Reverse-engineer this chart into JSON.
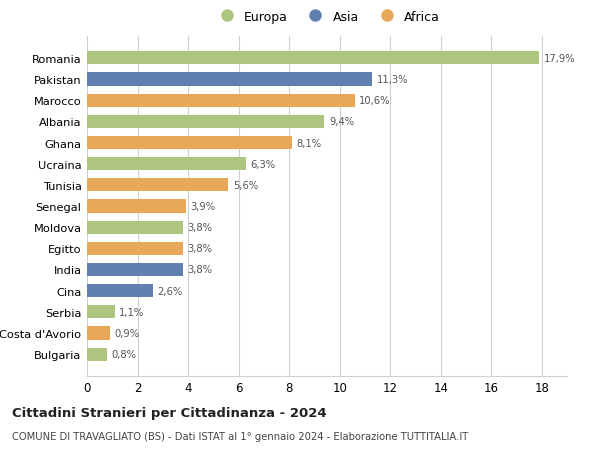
{
  "countries": [
    "Romania",
    "Pakistan",
    "Marocco",
    "Albania",
    "Ghana",
    "Ucraina",
    "Tunisia",
    "Senegal",
    "Moldova",
    "Egitto",
    "India",
    "Cina",
    "Serbia",
    "Costa d'Avorio",
    "Bulgaria"
  ],
  "values": [
    17.9,
    11.3,
    10.6,
    9.4,
    8.1,
    6.3,
    5.6,
    3.9,
    3.8,
    3.8,
    3.8,
    2.6,
    1.1,
    0.9,
    0.8
  ],
  "labels": [
    "17,9%",
    "11,3%",
    "10,6%",
    "9,4%",
    "8,1%",
    "6,3%",
    "5,6%",
    "3,9%",
    "3,8%",
    "3,8%",
    "3,8%",
    "2,6%",
    "1,1%",
    "0,9%",
    "0,8%"
  ],
  "continents": [
    "Europa",
    "Asia",
    "Africa",
    "Europa",
    "Africa",
    "Europa",
    "Africa",
    "Africa",
    "Europa",
    "Africa",
    "Asia",
    "Asia",
    "Europa",
    "Africa",
    "Europa"
  ],
  "colors": {
    "Europa": "#adc57e",
    "Asia": "#6080b0",
    "Africa": "#e8a85a"
  },
  "xlim": [
    0,
    19
  ],
  "xticks": [
    0,
    2,
    4,
    6,
    8,
    10,
    12,
    14,
    16,
    18
  ],
  "title": "Cittadini Stranieri per Cittadinanza - 2024",
  "subtitle": "COMUNE DI TRAVAGLIATO (BS) - Dati ISTAT al 1° gennaio 2024 - Elaborazione TUTTITALIA.IT",
  "background_color": "#ffffff",
  "grid_color": "#d0d0d0",
  "bar_height": 0.62,
  "figsize": [
    6.0,
    4.6
  ],
  "dpi": 100
}
